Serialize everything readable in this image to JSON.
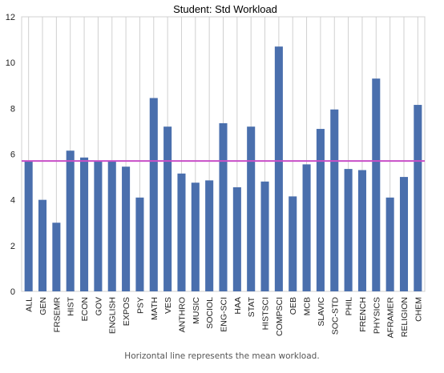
{
  "chart_data": {
    "type": "bar",
    "title": "Student: Std Workload",
    "xlabel": "",
    "ylabel": "",
    "ylim": [
      0,
      12
    ],
    "yticks": [
      0,
      2,
      4,
      6,
      8,
      10,
      12
    ],
    "grid": "vertical",
    "categories": [
      "ALL",
      "GEN",
      "FRSEMR",
      "HIST",
      "ECON",
      "GOV",
      "ENGLISH",
      "EXPOS",
      "PSY",
      "MATH",
      "VES",
      "ANTHRO",
      "MUSIC",
      "SOCIOL",
      "ENG-SCI",
      "HAA",
      "STAT",
      "HISTSCI",
      "COMPSCI",
      "OEB",
      "MCB",
      "SLAVIC",
      "SOC-STD",
      "PHIL",
      "FRENCH",
      "PHYSICS",
      "AFRAMER",
      "RELIGION",
      "CHEM"
    ],
    "values": [
      5.7,
      4.0,
      3.0,
      6.15,
      5.85,
      5.7,
      5.7,
      5.45,
      4.1,
      8.45,
      7.2,
      5.15,
      4.75,
      4.85,
      7.35,
      4.55,
      7.2,
      4.8,
      10.7,
      4.15,
      5.55,
      7.1,
      7.95,
      5.35,
      5.3,
      9.3,
      4.1,
      5.0,
      8.15
    ],
    "mean_line": 5.7,
    "colors": {
      "bar": "#4a6fad",
      "mean_line": "#c84fc8",
      "grid": "#d0d0d0"
    }
  },
  "caption": "Horizontal line represents the mean workload."
}
